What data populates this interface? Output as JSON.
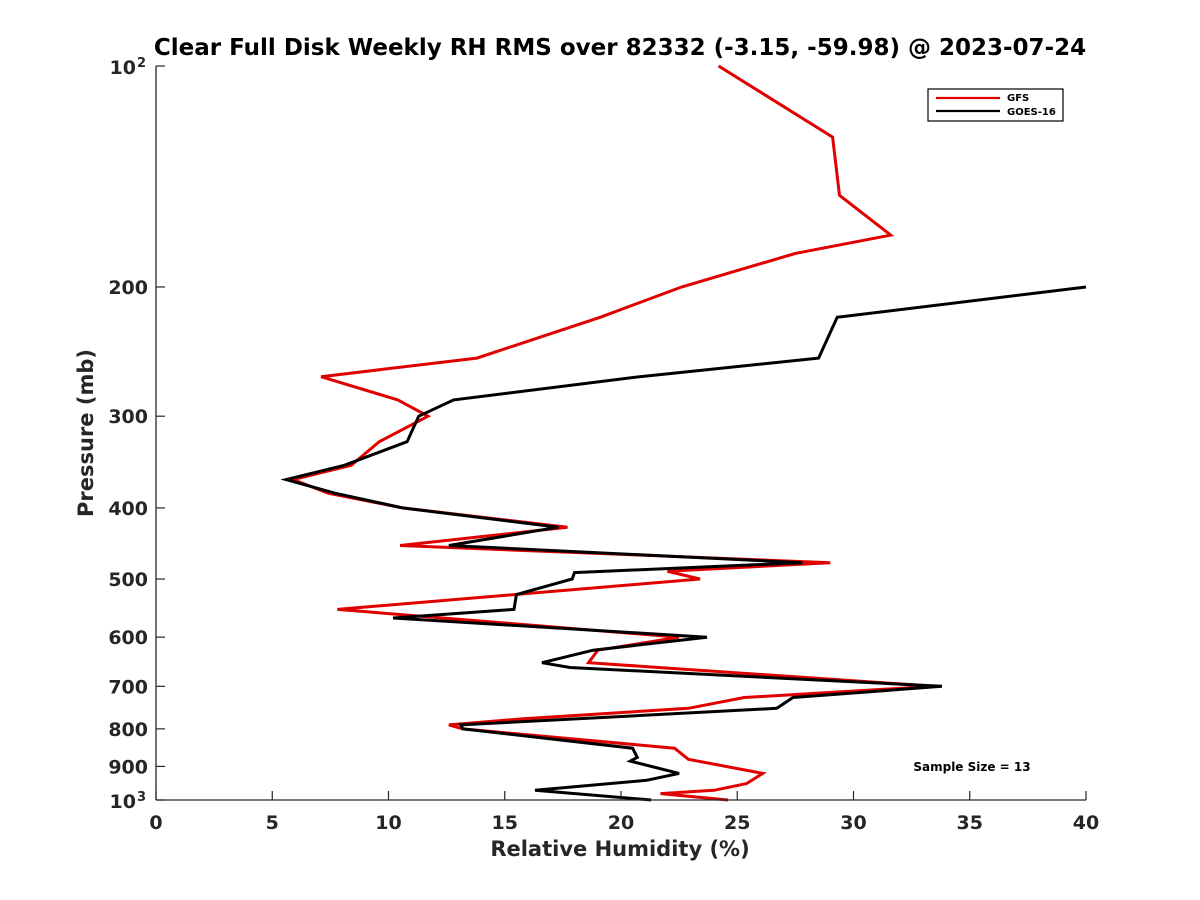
{
  "chart_data": {
    "type": "line",
    "title": "Clear Full Disk Weekly RH RMS over 82332 (-3.15, -59.98) @ 2023-07-24",
    "xlabel": "Relative Humidity (%)",
    "ylabel": "Pressure (mb)",
    "xlim": [
      0,
      40
    ],
    "ylim": [
      100,
      1000
    ],
    "y_scale": "log",
    "y_reversed": true,
    "x_ticks": [
      "0",
      "5",
      "10",
      "15",
      "20",
      "25",
      "30",
      "35",
      "40"
    ],
    "y_ticks": [
      {
        "value": 100,
        "base": "10",
        "exp": "2"
      },
      {
        "value": 200,
        "label": "200"
      },
      {
        "value": 300,
        "label": "300"
      },
      {
        "value": 400,
        "label": "400"
      },
      {
        "value": 500,
        "label": "500"
      },
      {
        "value": 600,
        "label": "600"
      },
      {
        "value": 700,
        "label": "700"
      },
      {
        "value": 800,
        "label": "800"
      },
      {
        "value": 900,
        "label": "900"
      },
      {
        "value": 1000,
        "base": "10",
        "exp": "3"
      }
    ],
    "grid": false,
    "legend_position": "top-right",
    "annotation": "Sample Size = 13",
    "series": [
      {
        "name": "GFS",
        "color": "#e00000",
        "points": [
          [
            24.2,
            100
          ],
          [
            29.1,
            125
          ],
          [
            29.4,
            150
          ],
          [
            31.6,
            170
          ],
          [
            27.5,
            180
          ],
          [
            22.6,
            200
          ],
          [
            19.1,
            220
          ],
          [
            13.8,
            250
          ],
          [
            7.1,
            265
          ],
          [
            10.4,
            285
          ],
          [
            11.7,
            300
          ],
          [
            9.6,
            325
          ],
          [
            8.4,
            350
          ],
          [
            5.9,
            366
          ],
          [
            7.4,
            382
          ],
          [
            10.6,
            400
          ],
          [
            17.7,
            425
          ],
          [
            10.5,
            450
          ],
          [
            29.0,
            475
          ],
          [
            22.0,
            488
          ],
          [
            23.4,
            500
          ],
          [
            7.8,
            550
          ],
          [
            22.5,
            600
          ],
          [
            19.0,
            625
          ],
          [
            18.6,
            650
          ],
          [
            33.5,
            700
          ],
          [
            25.3,
            725
          ],
          [
            22.9,
            750
          ],
          [
            15.8,
            775
          ],
          [
            12.6,
            790
          ],
          [
            13.2,
            800
          ],
          [
            22.3,
            850
          ],
          [
            22.9,
            880
          ],
          [
            26.1,
            920
          ],
          [
            25.4,
            950
          ],
          [
            24.0,
            970
          ],
          [
            21.7,
            980
          ],
          [
            24.6,
            1000
          ]
        ]
      },
      {
        "name": "GOES-16",
        "color": "#000000",
        "points": [
          [
            40.0,
            200
          ],
          [
            29.3,
            220
          ],
          [
            28.5,
            250
          ],
          [
            20.8,
            265
          ],
          [
            12.8,
            285
          ],
          [
            11.3,
            300
          ],
          [
            10.8,
            325
          ],
          [
            8.1,
            350
          ],
          [
            5.6,
            366
          ],
          [
            7.7,
            382
          ],
          [
            10.6,
            400
          ],
          [
            17.3,
            425
          ],
          [
            12.6,
            450
          ],
          [
            27.8,
            475
          ],
          [
            18.0,
            490
          ],
          [
            17.9,
            500
          ],
          [
            15.5,
            525
          ],
          [
            15.4,
            550
          ],
          [
            10.2,
            565
          ],
          [
            23.7,
            600
          ],
          [
            18.8,
            625
          ],
          [
            16.6,
            650
          ],
          [
            17.8,
            660
          ],
          [
            33.8,
            700
          ],
          [
            27.4,
            725
          ],
          [
            26.7,
            750
          ],
          [
            13.1,
            790
          ],
          [
            13.2,
            800
          ],
          [
            20.5,
            850
          ],
          [
            20.7,
            875
          ],
          [
            20.4,
            885
          ],
          [
            22.5,
            920
          ],
          [
            21.1,
            940
          ],
          [
            16.3,
            970
          ],
          [
            21.3,
            1000
          ]
        ]
      }
    ]
  }
}
